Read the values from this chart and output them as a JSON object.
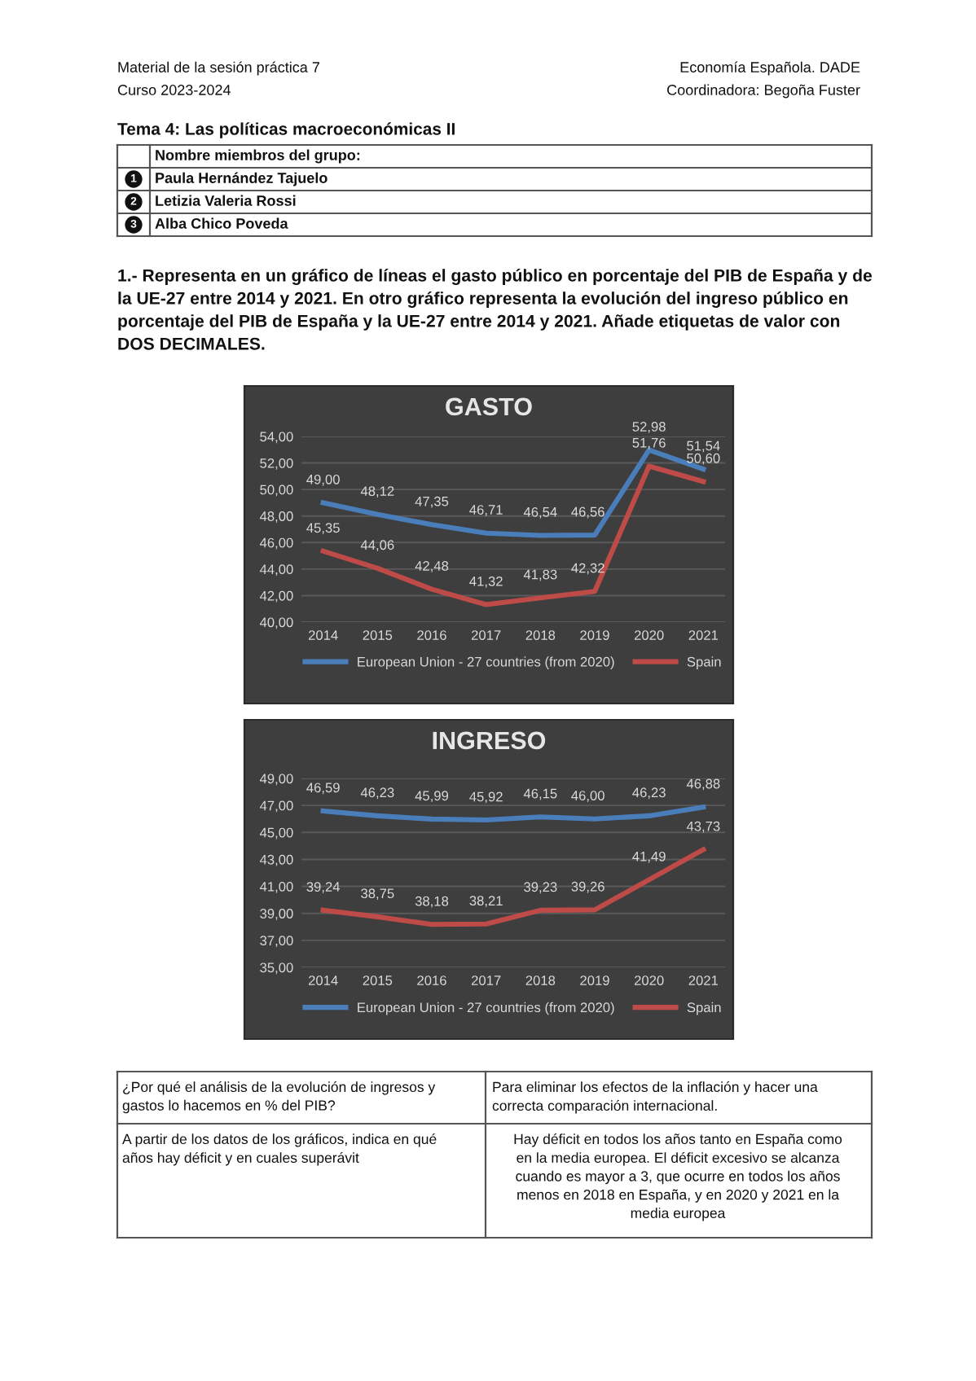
{
  "chart_data": [
    {
      "type": "line",
      "title": "GASTO",
      "categories": [
        "2014",
        "2015",
        "2016",
        "2017",
        "2018",
        "2019",
        "2020",
        "2021"
      ],
      "series": [
        {
          "name": "European Union - 27 countries (from 2020)",
          "color": "#4a7ebb",
          "values": [
            49.0,
            48.12,
            47.35,
            46.71,
            46.54,
            46.56,
            52.98,
            51.54
          ],
          "value_labels": [
            "49,00",
            "48,12",
            "47,35",
            "46,71",
            "46,54",
            "46,56",
            "52,98",
            "51,54"
          ]
        },
        {
          "name": "Spain",
          "color": "#be4b48",
          "values": [
            45.35,
            44.06,
            42.48,
            41.32,
            41.83,
            42.32,
            51.76,
            50.6
          ],
          "value_labels": [
            "45,35",
            "44,06",
            "42,48",
            "41,32",
            "41,83",
            "42,32",
            "51,76",
            "50,60"
          ]
        }
      ],
      "ylim": [
        40,
        54
      ],
      "yticks": [
        {
          "value": 40,
          "label": "40,00"
        },
        {
          "value": 42,
          "label": "42,00"
        },
        {
          "value": 44,
          "label": "44,00"
        },
        {
          "value": 46,
          "label": "46,00"
        },
        {
          "value": 48,
          "label": "48,00"
        },
        {
          "value": 50,
          "label": "50,00"
        },
        {
          "value": 52,
          "label": "52,00"
        },
        {
          "value": 54,
          "label": "54,00"
        }
      ],
      "grid": "y",
      "legend": "bottom",
      "marker": "none",
      "line_style": "solid",
      "annotations": [
        "Material de la sesión práctica 7",
        "Curso 2023-2024",
        "Economía Española. DADE",
        "Coordinadora: Begoña Fuster",
        "Tema 4: Las políticas macroeconómicas II",
        "Nombre miembros del grupo:",
        "1",
        "Paula Hernández Tajuelo",
        "2",
        "Letizia Valeria Rossi",
        "3",
        "Alba Chico Poveda",
        "1.- Representa en un gráfico de líneas el gasto público en porcentaje del PIB de España y de",
        "la UE-27 entre 2014 y 2021. En otro gráfico representa la evolución del ingreso público en",
        "porcentaje del PIB de España y la UE-27 entre 2014 y 2021. Añade etiquetas de valor con",
        "DOS DECIMALES."
      ]
    },
    {
      "type": "line",
      "title": "INGRESO",
      "categories": [
        "2014",
        "2015",
        "2016",
        "2017",
        "2018",
        "2019",
        "2020",
        "2021"
      ],
      "series": [
        {
          "name": "European Union - 27 countries (from 2020)",
          "color": "#4a7ebb",
          "values": [
            46.59,
            46.23,
            45.99,
            45.92,
            46.15,
            46.0,
            46.23,
            46.88
          ],
          "value_labels": [
            "46,59",
            "46,23",
            "45,99",
            "45,92",
            "46,15",
            "46,00",
            "46,23",
            "46,88"
          ]
        },
        {
          "name": "Spain",
          "color": "#be4b48",
          "values": [
            39.24,
            38.75,
            38.18,
            38.21,
            39.23,
            39.26,
            41.49,
            43.73
          ],
          "value_labels": [
            "39,24",
            "38,75",
            "38,18",
            "38,21",
            "39,23",
            "39,26",
            "41,49",
            "43,73"
          ]
        }
      ],
      "ylim": [
        35,
        49
      ],
      "yticks": [
        {
          "value": 35,
          "label": "35,00"
        },
        {
          "value": 37,
          "label": "37,00"
        },
        {
          "value": 39,
          "label": "39,00"
        },
        {
          "value": 41,
          "label": "41,00"
        },
        {
          "value": 43,
          "label": "43,00"
        },
        {
          "value": 45,
          "label": "45,00"
        },
        {
          "value": 47,
          "label": "47,00"
        },
        {
          "value": 49,
          "label": "49,00"
        }
      ],
      "grid": "y",
      "legend": "bottom",
      "marker": "none",
      "line_style": "solid",
      "annotations": [
        "¿Por qué el análisis de la evolución de ingresos y\ngastos lo hacemos en % del PIB?",
        "Para eliminar los efectos de la inflación y hacer una\ncorrecta comparación internacional.",
        "A partir de los datos de los gráficos, indica en qué\naños hay déficit y en cuales superávit",
        "Hay déficit en todos los años tanto en España como\nen la media europea. El déficit excesivo se alcanza\ncuando es mayor a 3, que ocurre en todos los años\nmenos en 2018 en España, y en 2020 y 2021 en la\nmedia europea"
      ]
    }
  ]
}
